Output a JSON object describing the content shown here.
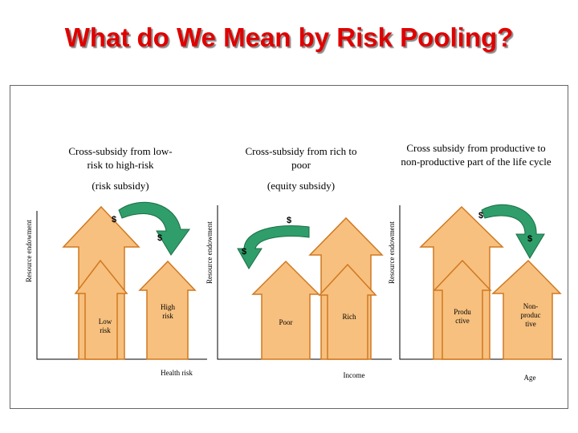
{
  "title": "What do We Mean by Risk Pooling?",
  "panels": [
    {
      "header": "Cross-subsidy from low-risk to high-risk",
      "subtitle": "(risk subsidy)",
      "y_label": "Resource endowment",
      "x_label": "Health risk",
      "left_bar": "Low risk",
      "right_bar": "High risk",
      "dollar_top": "$",
      "dollar_bottom": "$"
    },
    {
      "header": "Cross-subsidy from rich to poor",
      "subtitle": "(equity subsidy)",
      "y_label": "Resource endowment",
      "x_label": "Income",
      "left_bar": "Poor",
      "right_bar": "Rich",
      "dollar_top": "$",
      "dollar_bottom": "$"
    },
    {
      "header": "Cross subsidy from productive to non-productive part of the life cycle",
      "subtitle": "",
      "y_label": "Resource endowment",
      "x_label": "Age",
      "left_bar": "Produ ctive",
      "right_bar": "Non-produc tive",
      "dollar_top": "$",
      "dollar_bottom": "$"
    }
  ],
  "colors": {
    "title": "#e00000",
    "arrow_fill": "#f7c07e",
    "arrow_stroke": "#d07820",
    "curve_fill": "#2f9e6a"
  }
}
